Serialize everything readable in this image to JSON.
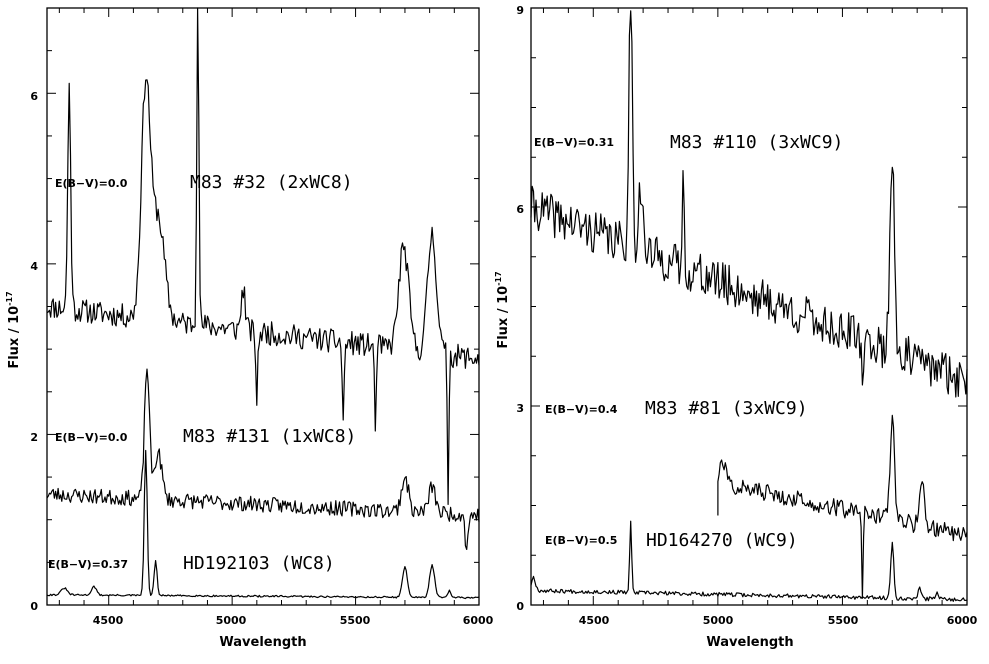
{
  "chart_data": [
    {
      "type": "line",
      "xlabel": "Wavelength",
      "ylabel": "Flux / 10",
      "ylabel_exponent": "-17",
      "xlim": [
        4250,
        6000
      ],
      "ylim": [
        0,
        7
      ],
      "x_ticks": [
        4500,
        5000,
        5500,
        6000
      ],
      "y_ticks": [
        2,
        4,
        6
      ],
      "y_tick_labels": [
        "2",
        "4",
        "6"
      ],
      "bottom_label": "0",
      "series": [
        {
          "name": "M83 #32 (2xWC8)",
          "reddening": "E(B−V)=0.0",
          "base": 3.5,
          "slope": -0.00035,
          "noise": 0.14,
          "seed": 11,
          "lines": [
            {
              "wl": 4340,
              "amp": 2.6,
              "sigma": 6
            },
            {
              "wl": 4650,
              "amp": 2.7,
              "sigma": 18
            },
            {
              "wl": 4700,
              "amp": 1.2,
              "sigma": 25
            },
            {
              "wl": 4861,
              "amp": 4.2,
              "sigma": 4
            },
            {
              "wl": 5045,
              "amp": 0.5,
              "sigma": 8
            },
            {
              "wl": 5100,
              "amp": -0.8,
              "sigma": 4
            },
            {
              "wl": 5450,
              "amp": -0.9,
              "sigma": 4
            },
            {
              "wl": 5580,
              "amp": -1.1,
              "sigma": 3
            },
            {
              "wl": 5695,
              "amp": 1.2,
              "sigma": 20
            },
            {
              "wl": 5810,
              "amp": 1.4,
              "sigma": 18
            },
            {
              "wl": 5875,
              "amp": -1.7,
              "sigma": 3
            }
          ]
        },
        {
          "name": "M83 #131 (1xWC8)",
          "reddening": "E(B−V)=0.0",
          "base": 1.3,
          "slope": -0.00014,
          "noise": 0.09,
          "seed": 23,
          "lines": [
            {
              "wl": 4655,
              "amp": 1.55,
              "sigma": 10
            },
            {
              "wl": 4700,
              "amp": 0.55,
              "sigma": 15
            },
            {
              "wl": 5700,
              "amp": 0.4,
              "sigma": 14
            },
            {
              "wl": 5810,
              "amp": 0.3,
              "sigma": 14
            },
            {
              "wl": 5950,
              "amp": -0.4,
              "sigma": 6
            }
          ]
        },
        {
          "name": "HD192103 (WC8)",
          "reddening": "E(B−V)=0.37",
          "base": 0.12,
          "slope": -2e-05,
          "noise": 0.01,
          "seed": 31,
          "lines": [
            {
              "wl": 4320,
              "amp": 0.08,
              "sigma": 12
            },
            {
              "wl": 4440,
              "amp": 0.1,
              "sigma": 10
            },
            {
              "wl": 4650,
              "amp": 1.7,
              "sigma": 6
            },
            {
              "wl": 4690,
              "amp": 0.4,
              "sigma": 6
            },
            {
              "wl": 5700,
              "amp": 0.35,
              "sigma": 10
            },
            {
              "wl": 5810,
              "amp": 0.38,
              "sigma": 10
            },
            {
              "wl": 5880,
              "amp": 0.08,
              "sigma": 6
            }
          ]
        }
      ]
    },
    {
      "type": "line",
      "xlabel": "Wavelength",
      "ylabel": "Flux / 10",
      "ylabel_exponent": "-17",
      "xlim": [
        4250,
        6000
      ],
      "ylim": [
        0,
        9
      ],
      "x_ticks": [
        4500,
        5000,
        5500,
        6000
      ],
      "y_ticks": [
        3,
        6,
        9
      ],
      "y_tick_labels": [
        "3",
        "6",
        "9"
      ],
      "bottom_label": "0",
      "series": [
        {
          "name": "M83 #110 (3xWC9)",
          "reddening": "E(B−V)=0.31",
          "base": 6.0,
          "slope": -0.0015,
          "noise": 0.32,
          "seed": 41,
          "lines": [
            {
              "wl": 4650,
              "amp": 3.8,
              "sigma": 7
            },
            {
              "wl": 4690,
              "amp": 1.0,
              "sigma": 8
            },
            {
              "wl": 4861,
              "amp": 1.6,
              "sigma": 3
            },
            {
              "wl": 5580,
              "amp": -1.0,
              "sigma": 3
            },
            {
              "wl": 5700,
              "amp": 3.0,
              "sigma": 9
            }
          ]
        },
        {
          "name": "M83 #81 (3xWC9)",
          "reddening": "E(B−V)=0.4",
          "base": 2.45,
          "slope": -0.0008,
          "noise": 0.13,
          "seed": 57,
          "x_start": 5000,
          "lines": [
            {
              "wl": 5020,
              "amp": 0.3,
              "sigma": 12
            },
            {
              "wl": 5580,
              "amp": -1.2,
              "sigma": 3
            },
            {
              "wl": 5700,
              "amp": 1.5,
              "sigma": 9
            },
            {
              "wl": 5820,
              "amp": 0.6,
              "sigma": 10
            }
          ]
        },
        {
          "name": "HD164270 (WC9)",
          "reddening": "E(B−V)=0.5",
          "base": 0.22,
          "slope": -8e-05,
          "noise": 0.03,
          "seed": 67,
          "lines": [
            {
              "wl": 4260,
              "amp": 0.2,
              "sigma": 8
            },
            {
              "wl": 4650,
              "amp": 1.05,
              "sigma": 4
            },
            {
              "wl": 5700,
              "amp": 0.85,
              "sigma": 6
            },
            {
              "wl": 5810,
              "amp": 0.15,
              "sigma": 6
            },
            {
              "wl": 5880,
              "amp": 0.12,
              "sigma": 6
            }
          ]
        }
      ]
    }
  ]
}
